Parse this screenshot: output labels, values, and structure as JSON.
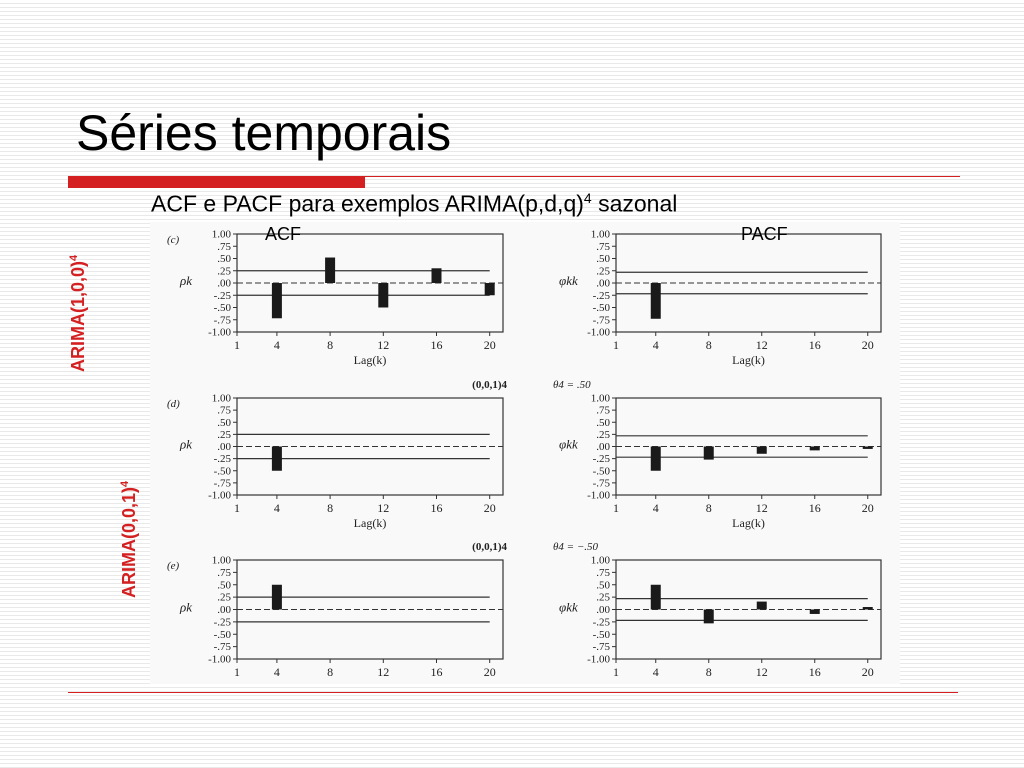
{
  "slide": {
    "title": "Séries temporais",
    "subtitle": "ACF e PACF para exemplos ARIMA(p,d,q)",
    "subtitle_sup": "4",
    "subtitle_suffix": " sazonal",
    "acf_label": "ACF",
    "pacf_label": "PACF",
    "side_label_1": "ARIMA(1,0,0)",
    "side_label_1_sup": "4",
    "side_label_2": "ARIMA(0,0,1)",
    "side_label_2_sup": "4",
    "accent_color": "#d42020"
  },
  "chart_data": [
    {
      "type": "bar",
      "panel": "(c)",
      "function": "ACF",
      "ylabel": "ρk",
      "xlabel": "Lag(k)",
      "x": [
        4,
        8,
        12,
        16,
        20
      ],
      "values": [
        -0.72,
        0.52,
        -0.5,
        0.3,
        -0.25
      ],
      "xticks": [
        "1",
        "4",
        "8",
        "12",
        "16",
        "20"
      ],
      "ylim": [
        -1,
        1
      ],
      "yticks": [
        "1.00",
        ".75",
        ".50",
        ".25",
        ".00",
        "-.25",
        "-.50",
        "-.75",
        "-1.00"
      ],
      "bounds": 0.25,
      "header_left": "",
      "header_right": ""
    },
    {
      "type": "bar",
      "panel": "",
      "function": "PACF",
      "ylabel": "φkk",
      "xlabel": "Lag(k)",
      "x": [
        4
      ],
      "values": [
        -0.73
      ],
      "xticks": [
        "1",
        "4",
        "8",
        "12",
        "16",
        "20"
      ],
      "ylim": [
        -1,
        1
      ],
      "yticks": [
        "1.00",
        ".75",
        ".50",
        ".25",
        ".00",
        "-.25",
        "-.50",
        "-.75",
        "-1.00"
      ],
      "bounds": 0.22,
      "header_left": "",
      "header_right": ""
    },
    {
      "type": "bar",
      "panel": "(d)",
      "function": "ACF",
      "ylabel": "ρk",
      "xlabel": "Lag(k)",
      "x": [
        4
      ],
      "values": [
        -0.5
      ],
      "xticks": [
        "1",
        "4",
        "8",
        "12",
        "16",
        "20"
      ],
      "ylim": [
        -1,
        1
      ],
      "yticks": [
        "1.00",
        ".75",
        ".50",
        ".25",
        ".00",
        "-.25",
        "-.50",
        "-.75",
        "-1.00"
      ],
      "bounds": 0.25,
      "header_left": "(0,0,1)4",
      "header_right": "θ4 = .50"
    },
    {
      "type": "bar",
      "panel": "",
      "function": "PACF",
      "ylabel": "φkk",
      "xlabel": "Lag(k)",
      "x": [
        4,
        8,
        12,
        16,
        20
      ],
      "values": [
        -0.5,
        -0.27,
        -0.15,
        -0.08,
        -0.05
      ],
      "xticks": [
        "1",
        "4",
        "8",
        "12",
        "16",
        "20"
      ],
      "ylim": [
        -1,
        1
      ],
      "yticks": [
        "1.00",
        ".75",
        ".50",
        ".25",
        ".00",
        "-.25",
        "-.50",
        "-.75",
        "-1.00"
      ],
      "bounds": 0.22,
      "header_left": "",
      "header_right": ""
    },
    {
      "type": "bar",
      "panel": "(e)",
      "function": "ACF",
      "ylabel": "ρk",
      "xlabel": "",
      "x": [
        4
      ],
      "values": [
        0.5
      ],
      "xticks": [
        "1",
        "4",
        "8",
        "12",
        "16",
        "20"
      ],
      "ylim": [
        -1,
        1
      ],
      "yticks": [
        "1.00",
        ".75",
        ".50",
        ".25",
        ".00",
        "-.25",
        "-.50",
        "-.75",
        "-1.00"
      ],
      "bounds": 0.25,
      "header_left": "(0,0,1)4",
      "header_right": "θ4 = −.50"
    },
    {
      "type": "bar",
      "panel": "",
      "function": "PACF",
      "ylabel": "φkk",
      "xlabel": "",
      "x": [
        4,
        8,
        12,
        16,
        20
      ],
      "values": [
        0.5,
        -0.28,
        0.16,
        -0.09,
        0.05
      ],
      "xticks": [
        "1",
        "4",
        "8",
        "12",
        "16",
        "20"
      ],
      "ylim": [
        -1,
        1
      ],
      "yticks": [
        "1.00",
        ".75",
        ".50",
        ".25",
        ".00",
        "-.25",
        "-.50",
        "-.75",
        "-1.00"
      ],
      "bounds": 0.22,
      "header_left": "",
      "header_right": ""
    }
  ]
}
